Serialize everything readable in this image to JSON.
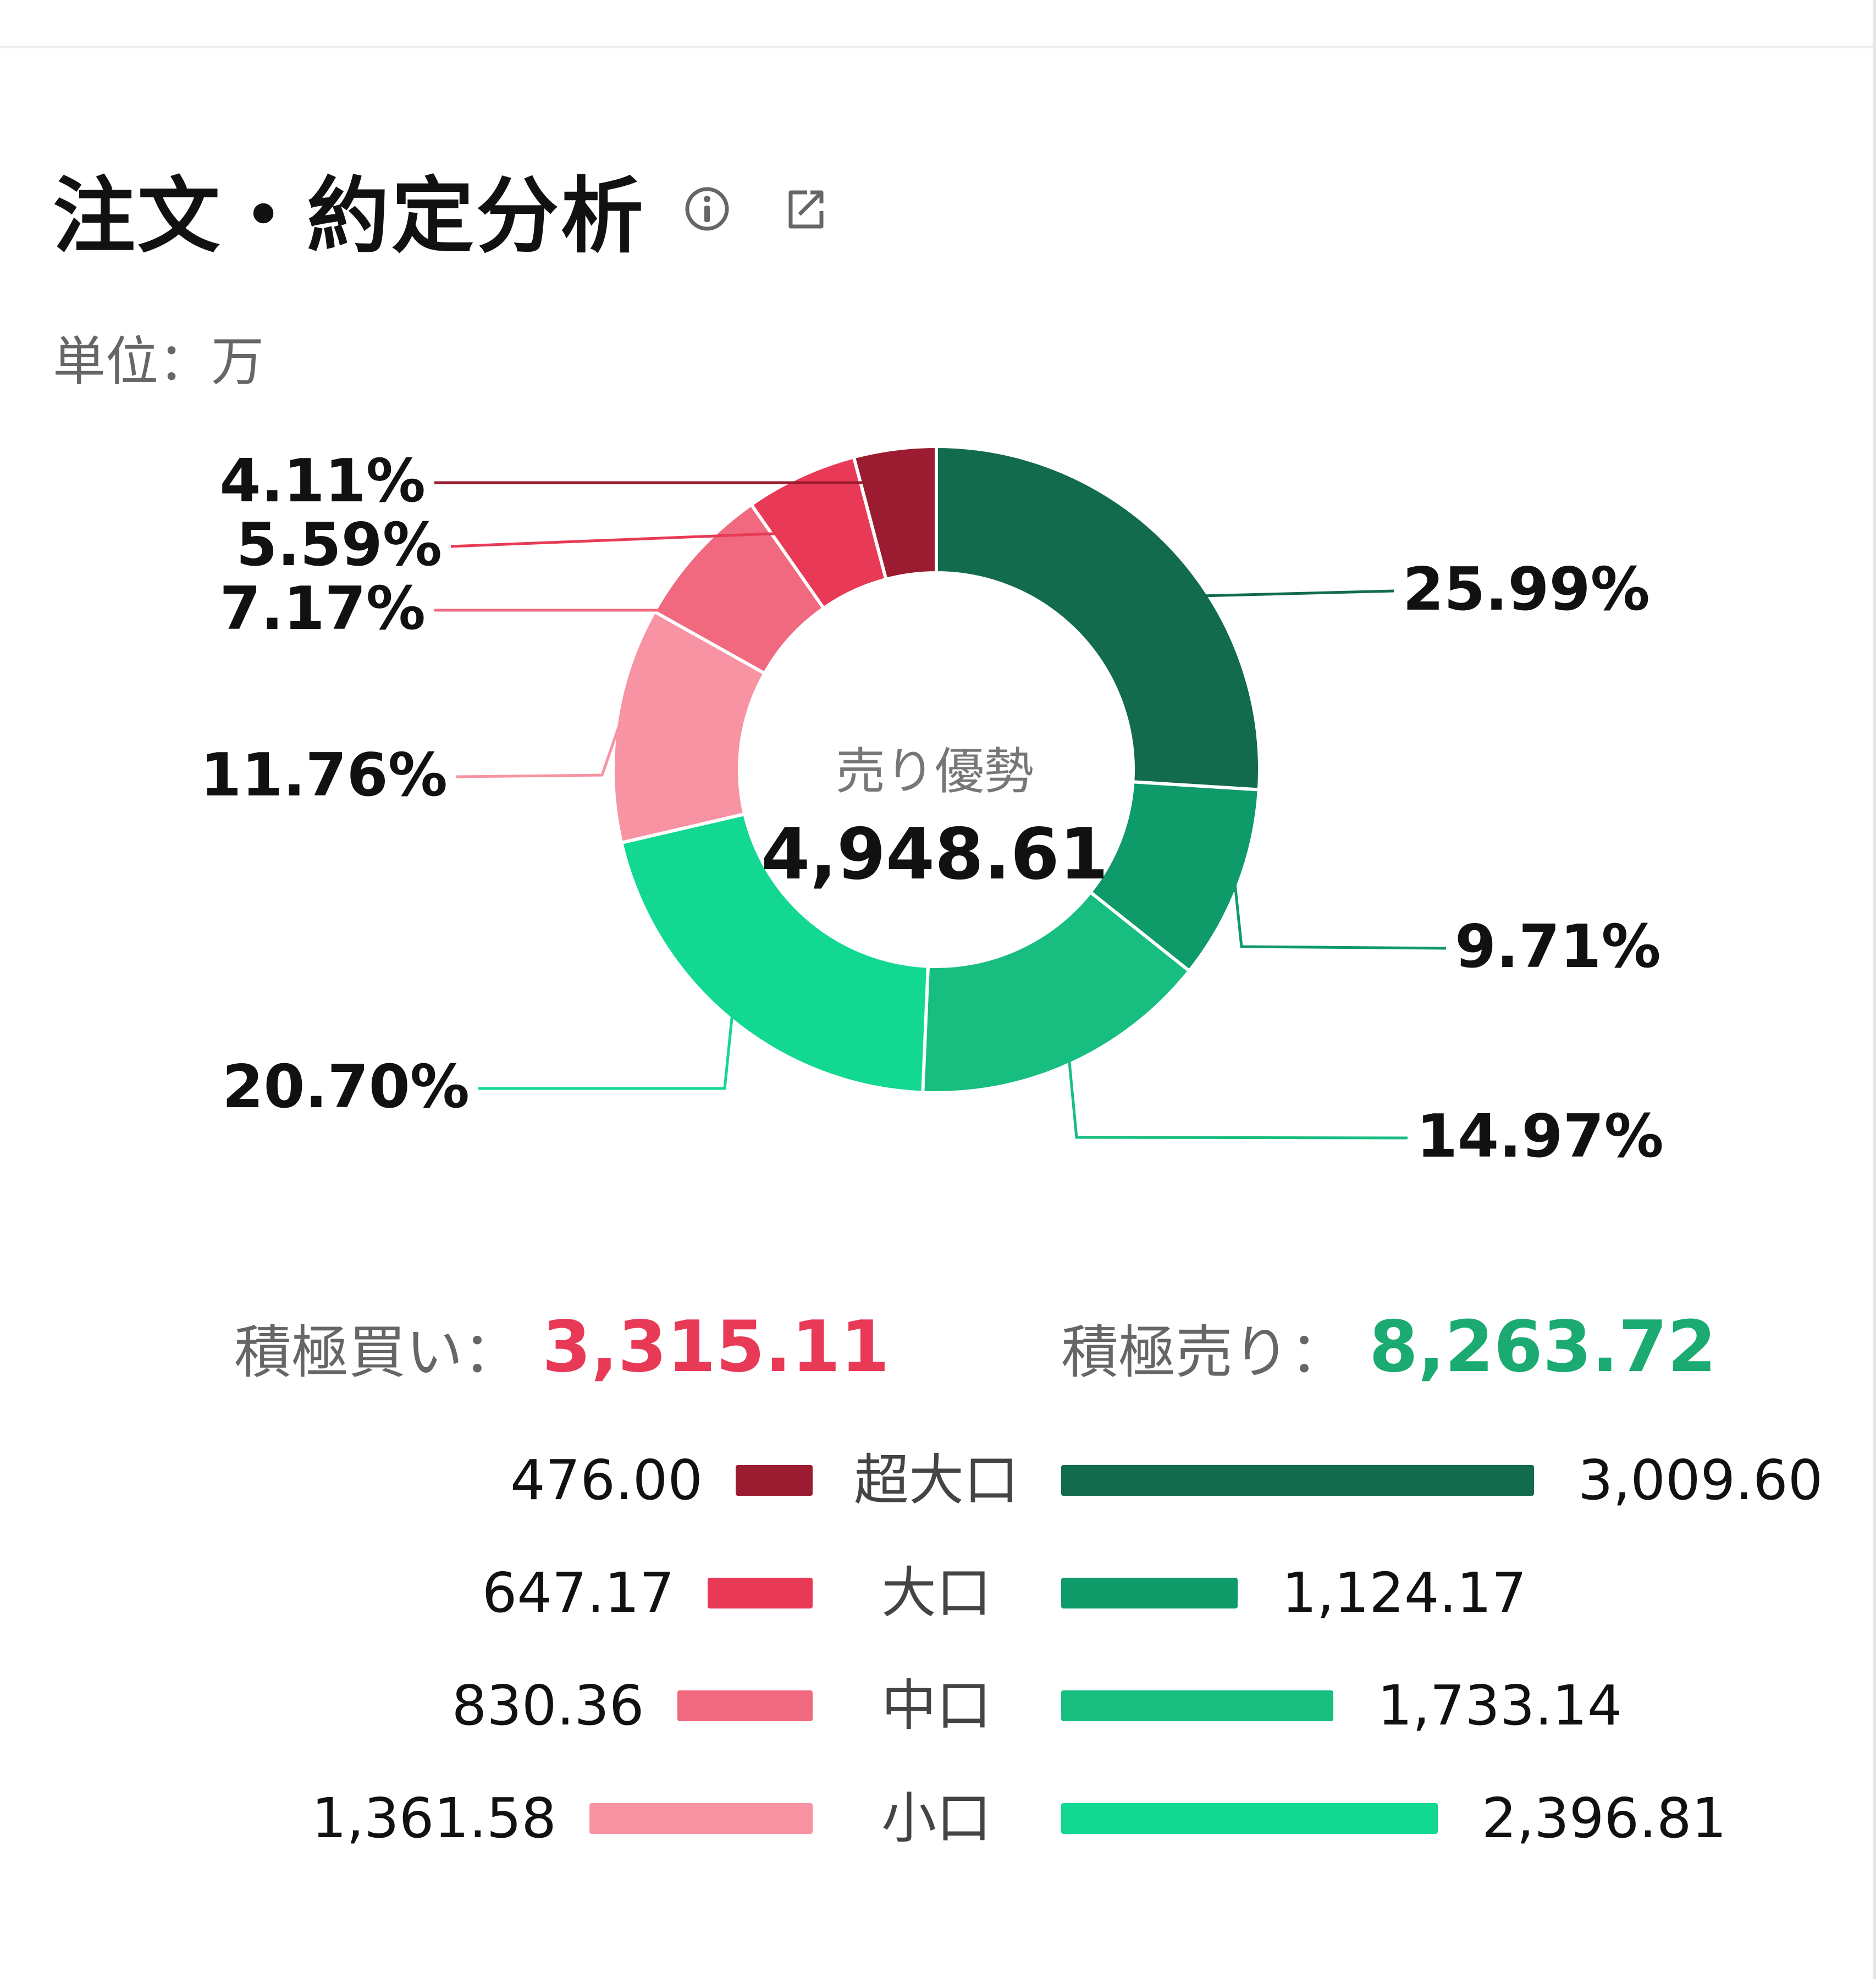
{
  "header": {
    "title": "注文・約定分析",
    "info_icon": "info-circle-icon",
    "share_icon": "share-icon"
  },
  "unit_label": "単位：万",
  "center": {
    "label": "売り優勢",
    "value": "4,948.61"
  },
  "totals": {
    "buy_label": "積極買い：",
    "buy_value": "3,315.11",
    "sell_label": "積極売り：",
    "sell_value": "8,263.72"
  },
  "colors": {
    "buy_super": "#9b1b30",
    "buy_large": "#e83a56",
    "buy_medium": "#f0697f",
    "buy_small": "#f793a2",
    "sell_super": "#136b4e",
    "sell_large": "#0f9a69",
    "sell_medium": "#17be80",
    "sell_small": "#12d892",
    "buy_total": "#e83a56",
    "sell_total": "#1aaa72"
  },
  "chart_data": {
    "type": "pie",
    "slices": [
      {
        "label": "25.99%",
        "value": 25.99,
        "color": "#136b4e"
      },
      {
        "label": "9.71%",
        "value": 9.71,
        "color": "#0f9a69"
      },
      {
        "label": "14.97%",
        "value": 14.97,
        "color": "#17be80"
      },
      {
        "label": "20.70%",
        "value": 20.7,
        "color": "#12d892"
      },
      {
        "label": "11.76%",
        "value": 11.76,
        "color": "#f793a2"
      },
      {
        "label": "7.17%",
        "value": 7.17,
        "color": "#f0697f"
      },
      {
        "label": "5.59%",
        "value": 5.59,
        "color": "#e83a56"
      },
      {
        "label": "4.11%",
        "value": 4.11,
        "color": "#9b1b30"
      }
    ]
  },
  "rows": [
    {
      "label": "超大口",
      "buy": "476.00",
      "sell": "3,009.60",
      "buy_value": 476.0,
      "sell_value": 3009.6
    },
    {
      "label": "大口",
      "buy": "647.17",
      "sell": "1,124.17",
      "buy_value": 647.17,
      "sell_value": 1124.17
    },
    {
      "label": "中口",
      "buy": "830.36",
      "sell": "1,733.14",
      "buy_value": 830.36,
      "sell_value": 1733.14
    },
    {
      "label": "小口",
      "buy": "1,361.58",
      "sell": "2,396.81",
      "buy_value": 1361.58,
      "sell_value": 2396.81
    }
  ]
}
